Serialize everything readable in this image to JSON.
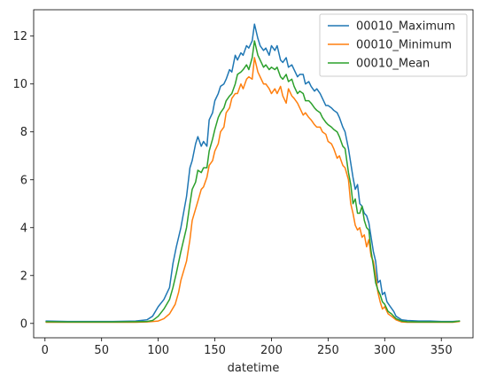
{
  "chart_data": {
    "type": "line",
    "title": "",
    "xlabel": "datetime",
    "ylabel": "",
    "xlim": [
      -10,
      378
    ],
    "ylim": [
      -0.6,
      13.1
    ],
    "xticks": [
      0,
      50,
      100,
      150,
      200,
      250,
      300,
      350
    ],
    "yticks": [
      0,
      2,
      4,
      6,
      8,
      10,
      12
    ],
    "grid": false,
    "legend_position": "top-right",
    "series": [
      {
        "name": "00010_Maximum",
        "color": "#1f77b4",
        "x": [
          1,
          20,
          40,
          60,
          80,
          90,
          95,
          100,
          105,
          110,
          113,
          116,
          120,
          125,
          128,
          130,
          133,
          135,
          138,
          140,
          143,
          145,
          148,
          150,
          153,
          155,
          158,
          160,
          163,
          165,
          168,
          170,
          173,
          175,
          178,
          180,
          183,
          185,
          188,
          190,
          193,
          195,
          198,
          200,
          203,
          205,
          208,
          210,
          213,
          215,
          218,
          220,
          223,
          225,
          228,
          230,
          233,
          235,
          238,
          240,
          243,
          245,
          248,
          250,
          253,
          255,
          258,
          260,
          263,
          265,
          268,
          270,
          272,
          274,
          276,
          278,
          280,
          282,
          284,
          286,
          288,
          290,
          292,
          294,
          296,
          298,
          300,
          302,
          305,
          308,
          310,
          315,
          320,
          330,
          340,
          350,
          360,
          366
        ],
        "values": [
          0.1,
          0.08,
          0.08,
          0.08,
          0.1,
          0.15,
          0.3,
          0.7,
          1.0,
          1.5,
          2.5,
          3.2,
          4.0,
          5.3,
          6.5,
          6.8,
          7.5,
          7.8,
          7.4,
          7.6,
          7.4,
          8.5,
          8.8,
          9.3,
          9.6,
          9.9,
          10.0,
          10.2,
          10.6,
          10.5,
          11.2,
          11.0,
          11.3,
          11.2,
          11.6,
          11.5,
          11.8,
          12.5,
          11.9,
          11.6,
          11.4,
          11.5,
          11.2,
          11.6,
          11.4,
          11.6,
          11.0,
          10.9,
          11.1,
          10.7,
          10.8,
          10.6,
          10.3,
          10.4,
          10.4,
          10.0,
          10.1,
          9.9,
          9.7,
          9.8,
          9.6,
          9.4,
          9.1,
          9.1,
          9.0,
          8.9,
          8.8,
          8.6,
          8.2,
          8.0,
          7.3,
          6.7,
          6.1,
          5.6,
          5.8,
          5.0,
          4.9,
          4.6,
          4.5,
          4.2,
          3.6,
          3.0,
          2.6,
          1.7,
          1.8,
          1.2,
          1.3,
          0.9,
          0.7,
          0.5,
          0.3,
          0.15,
          0.12,
          0.1,
          0.1,
          0.08,
          0.08,
          0.1
        ]
      },
      {
        "name": "00010_Minimum",
        "color": "#ff7f0e",
        "x": [
          1,
          20,
          40,
          60,
          80,
          90,
          100,
          105,
          110,
          115,
          118,
          120,
          125,
          128,
          130,
          135,
          138,
          140,
          143,
          145,
          148,
          150,
          153,
          155,
          158,
          160,
          163,
          165,
          168,
          170,
          173,
          175,
          178,
          180,
          183,
          185,
          188,
          190,
          193,
          195,
          198,
          200,
          203,
          205,
          208,
          210,
          213,
          215,
          218,
          220,
          223,
          225,
          228,
          230,
          233,
          235,
          238,
          240,
          243,
          245,
          248,
          250,
          253,
          255,
          258,
          260,
          263,
          265,
          268,
          270,
          272,
          274,
          276,
          278,
          280,
          282,
          284,
          286,
          288,
          290,
          292,
          294,
          296,
          298,
          300,
          303,
          306,
          310,
          315,
          320,
          330,
          340,
          350,
          360,
          366
        ],
        "values": [
          0.05,
          0.05,
          0.05,
          0.05,
          0.05,
          0.06,
          0.1,
          0.2,
          0.4,
          0.8,
          1.3,
          1.8,
          2.6,
          3.5,
          4.3,
          5.1,
          5.6,
          5.7,
          6.1,
          6.6,
          6.8,
          7.2,
          7.5,
          8.0,
          8.2,
          8.8,
          9.0,
          9.4,
          9.6,
          9.6,
          10.0,
          9.8,
          10.2,
          10.3,
          10.2,
          11.1,
          10.5,
          10.3,
          10.0,
          10.0,
          9.8,
          9.6,
          9.8,
          9.6,
          9.9,
          9.5,
          9.2,
          9.8,
          9.5,
          9.4,
          9.2,
          9.0,
          8.7,
          8.8,
          8.6,
          8.5,
          8.3,
          8.2,
          8.2,
          8.0,
          7.9,
          7.6,
          7.5,
          7.3,
          6.9,
          7.0,
          6.6,
          6.5,
          6.0,
          5.0,
          4.6,
          4.1,
          3.9,
          4.0,
          3.6,
          3.7,
          3.2,
          3.5,
          2.8,
          2.6,
          2.0,
          1.3,
          0.9,
          0.6,
          0.7,
          0.4,
          0.3,
          0.15,
          0.06,
          0.05,
          0.05,
          0.05,
          0.05,
          0.05,
          0.08
        ]
      },
      {
        "name": "00010_Mean",
        "color": "#2ca02c",
        "x": [
          1,
          20,
          40,
          60,
          80,
          90,
          95,
          100,
          105,
          110,
          113,
          116,
          120,
          125,
          128,
          130,
          133,
          135,
          138,
          140,
          143,
          145,
          148,
          150,
          153,
          155,
          158,
          160,
          163,
          165,
          168,
          170,
          173,
          175,
          178,
          180,
          183,
          185,
          188,
          190,
          193,
          195,
          198,
          200,
          203,
          205,
          208,
          210,
          213,
          215,
          218,
          220,
          223,
          225,
          228,
          230,
          233,
          235,
          238,
          240,
          243,
          245,
          248,
          250,
          253,
          255,
          258,
          260,
          263,
          265,
          268,
          270,
          272,
          274,
          276,
          278,
          280,
          282,
          284,
          286,
          288,
          290,
          292,
          294,
          296,
          298,
          300,
          303,
          306,
          310,
          315,
          320,
          330,
          340,
          350,
          360,
          366
        ],
        "values": [
          0.07,
          0.06,
          0.06,
          0.06,
          0.07,
          0.08,
          0.12,
          0.3,
          0.6,
          1.0,
          1.5,
          2.1,
          3.0,
          4.0,
          5.0,
          5.6,
          5.9,
          6.4,
          6.3,
          6.5,
          6.5,
          7.2,
          7.7,
          8.1,
          8.6,
          8.8,
          9.0,
          9.3,
          9.5,
          9.6,
          10.0,
          10.4,
          10.5,
          10.6,
          10.8,
          10.6,
          11.1,
          11.8,
          11.2,
          11.0,
          10.7,
          10.8,
          10.6,
          10.7,
          10.6,
          10.7,
          10.3,
          10.2,
          10.4,
          10.1,
          10.2,
          9.9,
          9.6,
          9.7,
          9.6,
          9.3,
          9.3,
          9.2,
          9.0,
          8.9,
          8.8,
          8.6,
          8.4,
          8.3,
          8.2,
          8.1,
          8.0,
          7.8,
          7.4,
          7.3,
          6.3,
          5.8,
          5.0,
          5.2,
          4.6,
          4.6,
          4.9,
          4.3,
          4.0,
          3.9,
          3.0,
          2.4,
          1.7,
          1.4,
          1.2,
          0.9,
          0.8,
          0.5,
          0.4,
          0.2,
          0.1,
          0.07,
          0.06,
          0.06,
          0.06,
          0.06,
          0.1
        ]
      }
    ]
  }
}
